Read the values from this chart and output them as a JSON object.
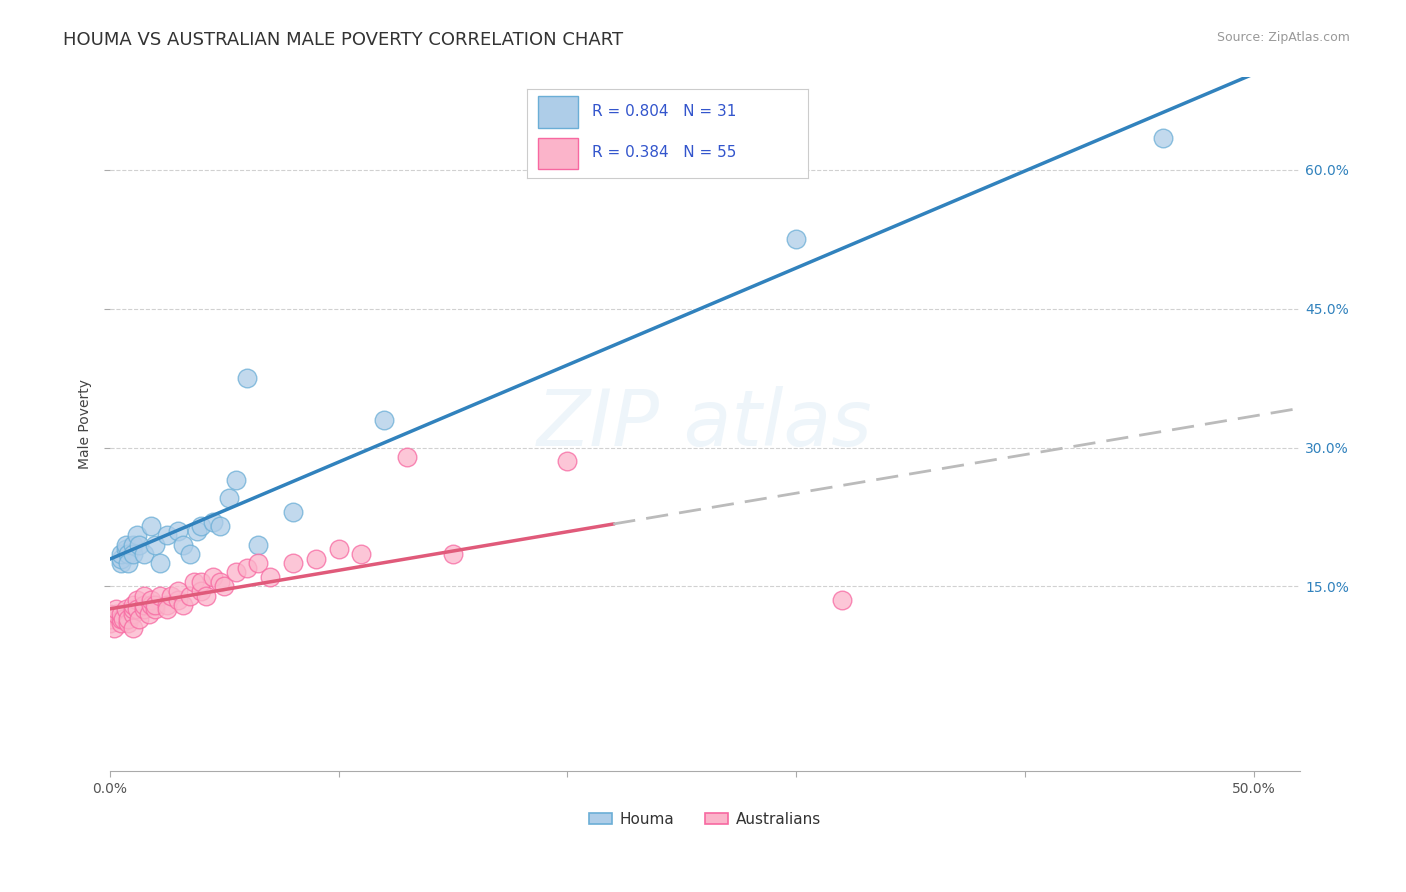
{
  "title": "HOUMA VS AUSTRALIAN MALE POVERTY CORRELATION CHART",
  "source": "Source: ZipAtlas.com",
  "ylabel": "Male Poverty",
  "xlim": [
    0.0,
    0.52
  ],
  "ylim": [
    -0.05,
    0.7
  ],
  "xtick_positions": [
    0.0,
    0.1,
    0.2,
    0.3,
    0.4,
    0.5
  ],
  "xtick_labels": [
    "0.0%",
    "",
    "",
    "",
    "",
    "50.0%"
  ],
  "ytick_vals_right": [
    0.15,
    0.3,
    0.45,
    0.6
  ],
  "ytick_labels_right": [
    "15.0%",
    "30.0%",
    "45.0%",
    "60.0%"
  ],
  "houma_edge_color": "#6baed6",
  "houma_face_color": "#aecde8",
  "aus_edge_color": "#f768a1",
  "aus_face_color": "#fbb4ca",
  "trendline_houma_color": "#3182bd",
  "trendline_aus_solid_color": "#e05a7a",
  "trendline_dashed_color": "#bbbbbb",
  "legend_text_color": "#3355cc",
  "legend_R_houma": "0.804",
  "legend_N_houma": "31",
  "legend_R_aus": "0.384",
  "legend_N_aus": "55",
  "background_color": "#ffffff",
  "grid_color": "#cccccc",
  "title_color": "#333333",
  "title_fontsize": 13,
  "houma_x": [
    0.005,
    0.005,
    0.005,
    0.007,
    0.007,
    0.008,
    0.008,
    0.01,
    0.01,
    0.012,
    0.013,
    0.015,
    0.018,
    0.02,
    0.022,
    0.025,
    0.03,
    0.032,
    0.035,
    0.038,
    0.04,
    0.045,
    0.048,
    0.052,
    0.055,
    0.06,
    0.065,
    0.08,
    0.12,
    0.3,
    0.46
  ],
  "houma_y": [
    0.175,
    0.18,
    0.185,
    0.19,
    0.195,
    0.185,
    0.175,
    0.195,
    0.185,
    0.205,
    0.195,
    0.185,
    0.215,
    0.195,
    0.175,
    0.205,
    0.21,
    0.195,
    0.185,
    0.21,
    0.215,
    0.22,
    0.215,
    0.245,
    0.265,
    0.375,
    0.195,
    0.23,
    0.33,
    0.525,
    0.635
  ],
  "aus_x": [
    0.0,
    0.0,
    0.0,
    0.002,
    0.003,
    0.003,
    0.005,
    0.005,
    0.005,
    0.006,
    0.007,
    0.008,
    0.008,
    0.01,
    0.01,
    0.01,
    0.01,
    0.012,
    0.012,
    0.013,
    0.015,
    0.015,
    0.015,
    0.017,
    0.018,
    0.018,
    0.02,
    0.02,
    0.022,
    0.025,
    0.025,
    0.027,
    0.03,
    0.03,
    0.032,
    0.035,
    0.037,
    0.04,
    0.04,
    0.042,
    0.045,
    0.048,
    0.05,
    0.055,
    0.06,
    0.065,
    0.07,
    0.08,
    0.09,
    0.1,
    0.11,
    0.13,
    0.15,
    0.2,
    0.32
  ],
  "aus_y": [
    0.11,
    0.115,
    0.12,
    0.105,
    0.12,
    0.125,
    0.11,
    0.115,
    0.12,
    0.115,
    0.125,
    0.11,
    0.115,
    0.12,
    0.125,
    0.13,
    0.105,
    0.135,
    0.125,
    0.115,
    0.125,
    0.13,
    0.14,
    0.12,
    0.13,
    0.135,
    0.125,
    0.13,
    0.14,
    0.13,
    0.125,
    0.14,
    0.135,
    0.145,
    0.13,
    0.14,
    0.155,
    0.145,
    0.155,
    0.14,
    0.16,
    0.155,
    0.15,
    0.165,
    0.17,
    0.175,
    0.16,
    0.175,
    0.18,
    0.19,
    0.185,
    0.29,
    0.185,
    0.285,
    0.135
  ]
}
